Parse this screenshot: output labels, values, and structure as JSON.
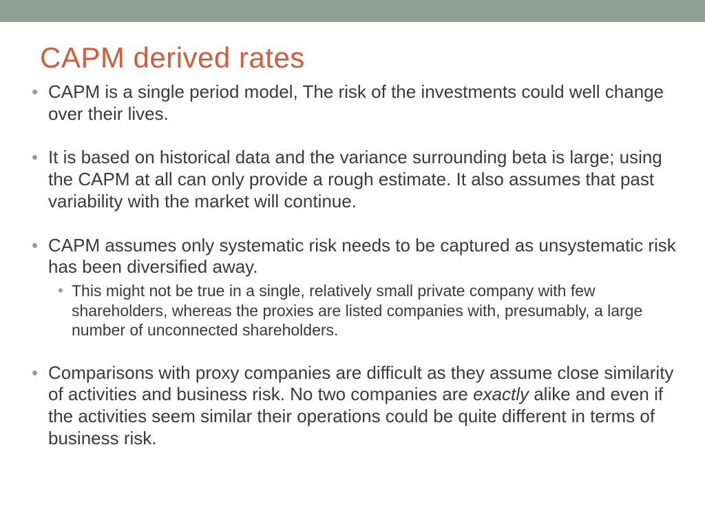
{
  "colors": {
    "top_bar": "#90a099",
    "title": "#d65b3c",
    "body_text": "#3a3a3a",
    "bullet": "#9a9a9a",
    "background": "#ffffff"
  },
  "typography": {
    "title_fontsize": 42,
    "body_fontsize": 26,
    "sub_fontsize": 23,
    "font_family": "Arial"
  },
  "slide": {
    "title": "CAPM derived rates",
    "bullets": [
      {
        "text": "CAPM is a single period model, The risk of the investments could well change over their lives."
      },
      {
        "text": "It is based on historical data and the variance surrounding beta is large; using the CAPM at all can only provide a rough estimate. It also assumes that past variability with the market will continue."
      },
      {
        "text": "CAPM assumes only systematic risk needs to be captured as unsystematic risk has been diversified away.",
        "sub": [
          " This might not be true in a single, relatively small private company with few shareholders, whereas the proxies are listed companies with, presumably, a large number of unconnected shareholders."
        ]
      },
      {
        "text_pre": "Comparisons with proxy companies are difficult as they assume close similarity of activities and business risk. No two companies are ",
        "text_italic": "exactly",
        "text_post": " alike and even if the activities seem similar their operations could be quite different in terms of business risk."
      }
    ]
  }
}
